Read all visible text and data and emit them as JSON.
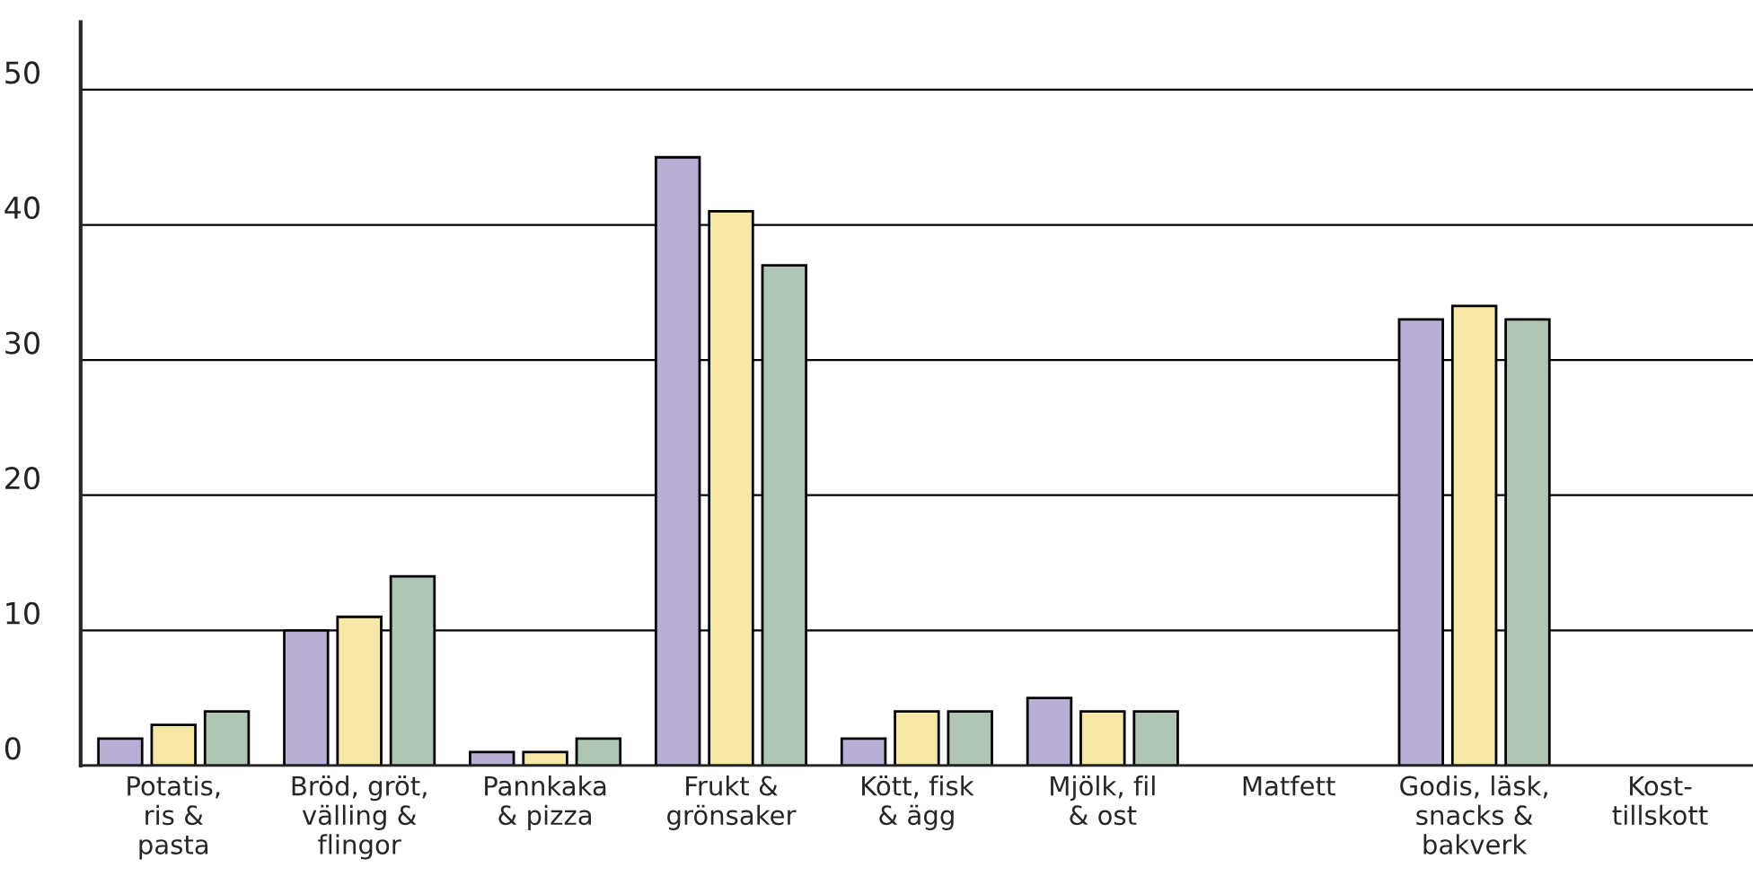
{
  "chart_data": {
    "type": "bar",
    "categories": [
      "Potatis,\nris &\npasta",
      "Bröd, gröt,\nvälling &\nflingor",
      "Pannkaka\n& pizza",
      "Frukt &\ngrönsaker",
      "Kött, fisk\n& ägg",
      "Mjölk, fil\n& ost",
      "Matfett",
      "Godis, läsk,\nsnacks &\nbakverk",
      "Kost-\ntillskott"
    ],
    "series": [
      {
        "color": "#b9aed6",
        "values": [
          2,
          10,
          1,
          45,
          2,
          5,
          0,
          33,
          0
        ]
      },
      {
        "color": "#f7e8a6",
        "values": [
          3,
          11,
          1,
          41,
          4,
          4,
          0,
          34,
          0
        ]
      },
      {
        "color": "#afc6b4",
        "values": [
          4,
          14,
          2,
          37,
          4,
          4,
          0,
          33,
          0
        ]
      }
    ],
    "ylim": [
      0,
      55
    ],
    "yticks": [
      0,
      10,
      20,
      30,
      40,
      50
    ],
    "grid": "y",
    "legend": false
  }
}
